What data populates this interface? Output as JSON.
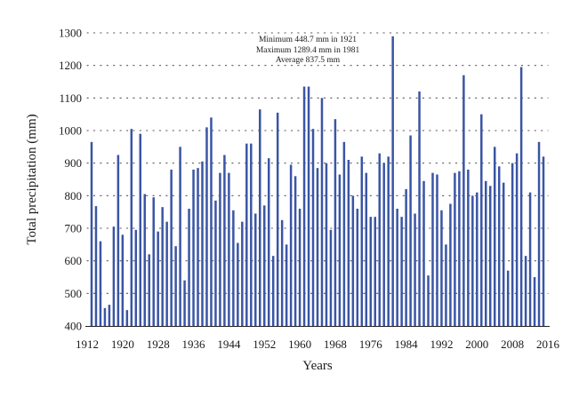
{
  "chart_data": {
    "type": "bar",
    "title": "",
    "xlabel": "Years",
    "ylabel": "Total precipitation (mm)",
    "ylim": [
      400,
      1300
    ],
    "yticks": [
      400,
      500,
      600,
      700,
      800,
      900,
      1000,
      1100,
      1200,
      1300
    ],
    "xticks": [
      1912,
      1920,
      1928,
      1936,
      1944,
      1952,
      1960,
      1968,
      1976,
      1984,
      1992,
      2000,
      2008,
      2016
    ],
    "grid": "horizontal dotted",
    "legend": "none",
    "bar_color": "#3a55a4",
    "annotations": [
      "Minimum 448.7 mm in 1921",
      "Maximum 1289.4 mm in 1981",
      "Average 837.5 mm"
    ],
    "x": [
      1913,
      1914,
      1915,
      1916,
      1917,
      1918,
      1919,
      1920,
      1921,
      1922,
      1923,
      1924,
      1925,
      1926,
      1927,
      1928,
      1929,
      1930,
      1931,
      1932,
      1933,
      1934,
      1935,
      1936,
      1937,
      1938,
      1939,
      1940,
      1941,
      1942,
      1943,
      1944,
      1945,
      1946,
      1947,
      1948,
      1949,
      1950,
      1951,
      1952,
      1953,
      1954,
      1955,
      1956,
      1957,
      1958,
      1959,
      1960,
      1961,
      1962,
      1963,
      1964,
      1965,
      1966,
      1967,
      1968,
      1969,
      1970,
      1971,
      1972,
      1973,
      1974,
      1975,
      1976,
      1977,
      1978,
      1979,
      1980,
      1981,
      1982,
      1983,
      1984,
      1985,
      1986,
      1987,
      1988,
      1989,
      1990,
      1991,
      1992,
      1993,
      1994,
      1995,
      1996,
      1997,
      1998,
      1999,
      2000,
      2001,
      2002,
      2003,
      2004,
      2005,
      2006,
      2007,
      2008,
      2009,
      2010,
      2011,
      2012,
      2013,
      2014,
      2015
    ],
    "values": [
      965,
      768,
      660,
      455,
      465,
      705,
      925,
      680,
      448.7,
      1005,
      695,
      990,
      805,
      620,
      795,
      690,
      765,
      720,
      880,
      645,
      950,
      540,
      760,
      880,
      885,
      905,
      1010,
      1040,
      785,
      870,
      925,
      870,
      755,
      655,
      720,
      960,
      960,
      745,
      1065,
      770,
      915,
      615,
      1055,
      725,
      650,
      895,
      860,
      760,
      1135,
      1135,
      1005,
      885,
      1100,
      900,
      695,
      1035,
      865,
      965,
      910,
      800,
      760,
      920,
      870,
      735,
      735,
      930,
      900,
      920,
      1289.4,
      760,
      735,
      820,
      985,
      745,
      1120,
      845,
      555,
      870,
      865,
      755,
      650,
      775,
      870,
      875,
      1170,
      880,
      800,
      810,
      1050,
      845,
      830,
      950,
      890,
      840,
      570,
      900,
      930,
      1195,
      615,
      810,
      550,
      965,
      920
    ]
  }
}
